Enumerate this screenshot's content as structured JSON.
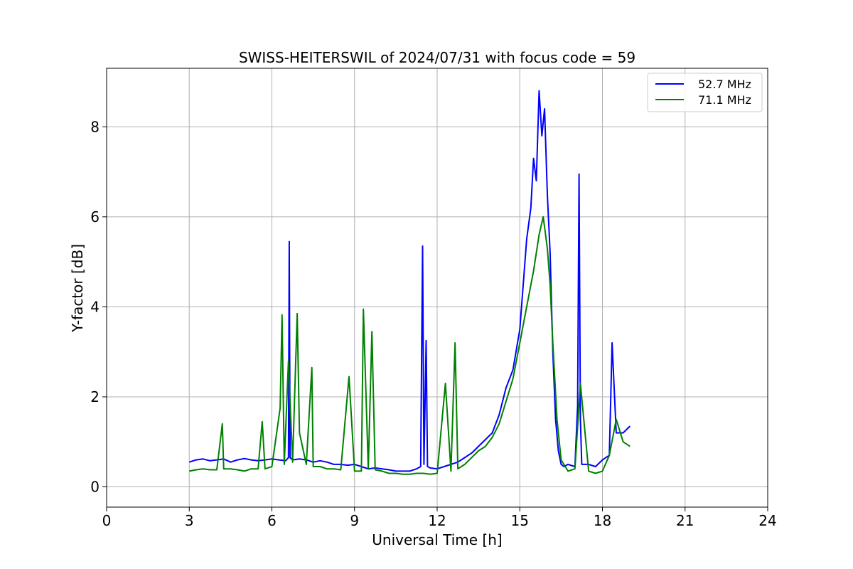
{
  "chart_data": {
    "type": "line",
    "title": "SWISS-HEITERSWIL of 2024/07/31 with focus code = 59",
    "xlabel": "Universal Time [h]",
    "ylabel": "Y-factor [dB]",
    "xlim": [
      0,
      24
    ],
    "ylim": [
      -0.45,
      9.3
    ],
    "xticks": [
      0,
      3,
      6,
      9,
      12,
      15,
      18,
      21,
      24
    ],
    "yticks": [
      0,
      2,
      4,
      6,
      8
    ],
    "grid": true,
    "legend_position": "top-right",
    "series": [
      {
        "name": "52.7 MHz",
        "color": "#0000ff",
        "x": [
          3.0,
          3.25,
          3.5,
          3.75,
          4.0,
          4.25,
          4.5,
          4.75,
          5.0,
          5.25,
          5.5,
          5.75,
          6.0,
          6.25,
          6.5,
          6.6,
          6.63,
          6.66,
          6.75,
          7.0,
          7.25,
          7.5,
          7.75,
          8.0,
          8.25,
          8.5,
          8.75,
          9.0,
          9.25,
          9.5,
          9.75,
          10.0,
          10.25,
          10.5,
          10.75,
          11.0,
          11.25,
          11.4,
          11.47,
          11.52,
          11.6,
          11.65,
          11.75,
          12.0,
          12.25,
          12.5,
          12.75,
          13.0,
          13.25,
          13.5,
          13.75,
          14.0,
          14.25,
          14.5,
          14.75,
          15.0,
          15.25,
          15.4,
          15.5,
          15.6,
          15.7,
          15.8,
          15.9,
          16.0,
          16.1,
          16.2,
          16.3,
          16.4,
          16.5,
          16.6,
          16.75,
          17.0,
          17.1,
          17.15,
          17.2,
          17.25,
          17.5,
          17.75,
          18.0,
          18.25,
          18.35,
          18.5,
          18.75,
          19.0
        ],
        "values": [
          0.55,
          0.6,
          0.62,
          0.58,
          0.6,
          0.62,
          0.55,
          0.6,
          0.63,
          0.6,
          0.58,
          0.6,
          0.62,
          0.6,
          0.58,
          0.65,
          5.45,
          0.65,
          0.6,
          0.62,
          0.6,
          0.55,
          0.58,
          0.55,
          0.5,
          0.5,
          0.48,
          0.5,
          0.45,
          0.4,
          0.42,
          0.4,
          0.38,
          0.35,
          0.35,
          0.35,
          0.4,
          0.45,
          5.35,
          0.5,
          3.25,
          0.45,
          0.42,
          0.4,
          0.45,
          0.5,
          0.55,
          0.65,
          0.75,
          0.9,
          1.05,
          1.2,
          1.6,
          2.2,
          2.6,
          3.5,
          5.5,
          6.2,
          7.3,
          6.8,
          8.8,
          7.8,
          8.4,
          6.5,
          5.2,
          3.0,
          1.5,
          0.8,
          0.5,
          0.45,
          0.5,
          0.45,
          1.8,
          6.95,
          1.5,
          0.5,
          0.5,
          0.45,
          0.6,
          0.7,
          3.2,
          1.2,
          1.2,
          1.35
        ]
      },
      {
        "name": "71.1 MHz",
        "color": "#008000",
        "x": [
          3.0,
          3.25,
          3.5,
          3.75,
          4.0,
          4.2,
          4.25,
          4.5,
          4.75,
          5.0,
          5.25,
          5.5,
          5.65,
          5.75,
          6.0,
          6.3,
          6.37,
          6.45,
          6.6,
          6.75,
          6.92,
          7.0,
          7.25,
          7.45,
          7.5,
          7.75,
          8.0,
          8.25,
          8.5,
          8.8,
          9.0,
          9.25,
          9.32,
          9.5,
          9.63,
          9.75,
          10.0,
          10.25,
          10.5,
          10.75,
          11.0,
          11.25,
          11.5,
          11.75,
          12.0,
          12.3,
          12.5,
          12.65,
          12.75,
          13.0,
          13.25,
          13.5,
          13.75,
          14.0,
          14.25,
          14.5,
          14.75,
          15.0,
          15.25,
          15.5,
          15.7,
          15.85,
          16.0,
          16.1,
          16.2,
          16.35,
          16.5,
          16.75,
          17.0,
          17.2,
          17.5,
          17.75,
          18.0,
          18.25,
          18.5,
          18.75,
          19.0
        ],
        "values": [
          0.35,
          0.38,
          0.4,
          0.38,
          0.38,
          1.4,
          0.4,
          0.4,
          0.38,
          0.35,
          0.4,
          0.4,
          1.45,
          0.4,
          0.45,
          1.75,
          3.82,
          0.5,
          2.8,
          0.55,
          3.85,
          1.2,
          0.5,
          2.65,
          0.45,
          0.45,
          0.4,
          0.4,
          0.38,
          2.45,
          0.35,
          0.35,
          3.95,
          0.4,
          3.45,
          0.38,
          0.35,
          0.3,
          0.3,
          0.28,
          0.28,
          0.3,
          0.3,
          0.28,
          0.3,
          2.3,
          0.35,
          3.2,
          0.4,
          0.5,
          0.65,
          0.8,
          0.9,
          1.1,
          1.4,
          1.9,
          2.4,
          3.2,
          4.0,
          4.8,
          5.6,
          6.0,
          5.3,
          4.5,
          3.2,
          1.5,
          0.6,
          0.35,
          0.4,
          2.3,
          0.35,
          0.3,
          0.35,
          0.7,
          1.5,
          1.0,
          0.9
        ]
      }
    ]
  }
}
